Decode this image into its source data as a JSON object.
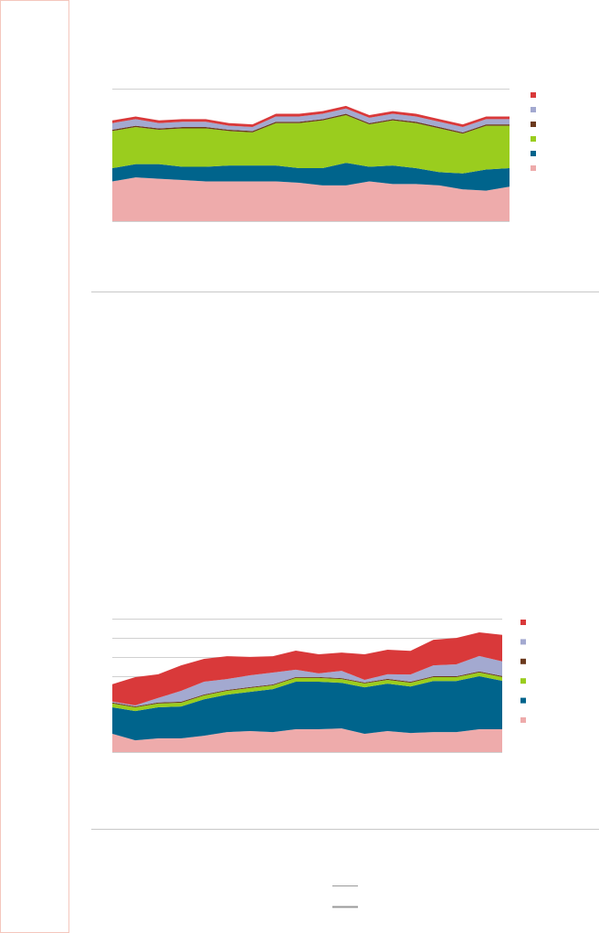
{
  "chart_data": [
    {
      "type": "area",
      "stacked": true,
      "grid": true,
      "categories": [
        null,
        null,
        null,
        null,
        null,
        null,
        null,
        null,
        null,
        null,
        null,
        null,
        null,
        null,
        null,
        null,
        null,
        null
      ],
      "ylim": [
        0,
        100
      ],
      "yticks": [
        0,
        100
      ],
      "series": [
        {
          "color": "#eeabab",
          "values": [
            30,
            33,
            32,
            31,
            30,
            30,
            30,
            30,
            29,
            27,
            27,
            30,
            28,
            28,
            27,
            24,
            23,
            26
          ]
        },
        {
          "color": "#00648c",
          "values": [
            10,
            10,
            11,
            10,
            11,
            12,
            12,
            12,
            11,
            13,
            17,
            11,
            14,
            12,
            10,
            12,
            16,
            14
          ]
        },
        {
          "color": "#9acd1e",
          "values": [
            28,
            28,
            26,
            29,
            29,
            26,
            25,
            32,
            34,
            36,
            36,
            32,
            34,
            34,
            33,
            30,
            33,
            32
          ]
        },
        {
          "color": "#6b3a1e",
          "values": [
            1,
            1,
            1,
            1,
            1,
            1,
            1,
            1,
            1,
            1,
            1,
            1,
            1,
            1,
            1,
            1,
            1,
            1
          ]
        },
        {
          "color": "#a3a9d0",
          "values": [
            5,
            5,
            4,
            4,
            4,
            3,
            3,
            4,
            4,
            4,
            4,
            4,
            4,
            4,
            4,
            4,
            4,
            4
          ]
        },
        {
          "color": "#d9393a",
          "values": [
            2,
            2,
            2,
            2,
            2,
            2,
            2,
            2,
            2,
            2,
            2,
            2,
            2,
            2,
            2,
            2,
            2,
            2
          ]
        }
      ]
    },
    {
      "type": "area",
      "stacked": true,
      "grid": true,
      "categories": [
        null,
        null,
        null,
        null,
        null,
        null,
        null,
        null,
        null,
        null,
        null,
        null,
        null,
        null,
        null,
        null,
        null,
        null
      ],
      "ylim": [
        0,
        7
      ],
      "yticks": [
        0,
        1,
        2,
        3,
        4,
        5,
        6,
        7
      ],
      "series": [
        {
          "color": "#eeabab",
          "values": [
            0.96,
            0.62,
            0.72,
            0.72,
            0.86,
            1.05,
            1.1,
            1.05,
            1.2,
            1.2,
            1.24,
            0.96,
            1.1,
            1.0,
            1.05,
            1.05,
            1.2,
            1.2
          ]
        },
        {
          "color": "#00648c",
          "values": [
            1.39,
            1.53,
            1.63,
            1.67,
            1.91,
            1.96,
            2.06,
            2.25,
            2.49,
            2.49,
            2.39,
            2.44,
            2.49,
            2.44,
            2.68,
            2.68,
            2.78,
            2.54
          ]
        },
        {
          "color": "#9acd1e",
          "values": [
            0.2,
            0.2,
            0.2,
            0.2,
            0.2,
            0.2,
            0.2,
            0.2,
            0.2,
            0.2,
            0.2,
            0.2,
            0.2,
            0.2,
            0.2,
            0.2,
            0.2,
            0.2
          ]
        },
        {
          "color": "#6b3a1e",
          "values": [
            0.05,
            0.05,
            0.05,
            0.05,
            0.05,
            0.05,
            0.05,
            0.05,
            0.05,
            0.05,
            0.05,
            0.05,
            0.05,
            0.05,
            0.05,
            0.05,
            0.05,
            0.05
          ]
        },
        {
          "color": "#a3a9d0",
          "values": [
            0.05,
            0.05,
            0.24,
            0.57,
            0.67,
            0.57,
            0.62,
            0.62,
            0.38,
            0.19,
            0.38,
            0.14,
            0.24,
            0.38,
            0.57,
            0.62,
            0.81,
            0.77
          ]
        },
        {
          "color": "#d9393a",
          "values": [
            0.91,
            1.48,
            1.24,
            1.34,
            1.2,
            1.2,
            0.96,
            0.86,
            1.0,
            1.0,
            0.96,
            1.34,
            1.29,
            1.24,
            1.34,
            1.39,
            1.24,
            1.39
          ]
        }
      ]
    }
  ]
}
